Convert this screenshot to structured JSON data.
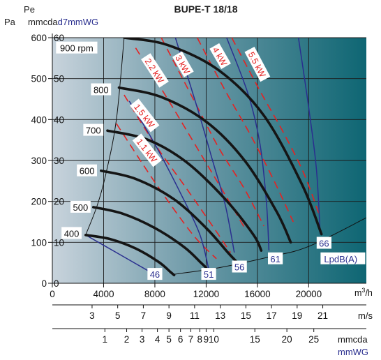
{
  "chart_data": {
    "type": "line",
    "title": "BUPE-T 18/18",
    "y_axes": {
      "pa_label": "Pa",
      "pe_label": "Pe",
      "mmcda_label": "mmcda",
      "mmwg_label": "d7mmWG",
      "pa_ticks": [
        0,
        100,
        200,
        300,
        400,
        500,
        600
      ],
      "mmcda_ticks": [
        0,
        10,
        20,
        30,
        40,
        50,
        60
      ],
      "ylim_pa": [
        0,
        600
      ]
    },
    "x_axis": {
      "unit": "m³/h",
      "ticks": [
        0,
        4000,
        8000,
        12000,
        16000,
        20000
      ],
      "xlim": [
        0,
        24500
      ]
    },
    "ms_scale": {
      "unit": "m/s",
      "ticks": [
        {
          "label": "3",
          "x": 3100
        },
        {
          "label": "5",
          "x": 5100
        },
        {
          "label": "7",
          "x": 7100
        },
        {
          "label": "9",
          "x": 9100
        },
        {
          "label": "11",
          "x": 11100
        },
        {
          "label": "13",
          "x": 13100
        },
        {
          "label": "15",
          "x": 15100
        },
        {
          "label": "17",
          "x": 17100
        },
        {
          "label": "19",
          "x": 19100
        },
        {
          "label": "21",
          "x": 21100
        }
      ]
    },
    "mmcda_scale": {
      "unit_line1": "mmcda",
      "unit_line2": "mmWG",
      "ticks": [
        {
          "label": "1",
          "x": 4100
        },
        {
          "label": "2",
          "x": 5800
        },
        {
          "label": "3",
          "x": 7000
        },
        {
          "label": "4",
          "x": 8200
        },
        {
          "label": "5",
          "x": 9100
        },
        {
          "label": "6",
          "x": 10000
        },
        {
          "label": "7",
          "x": 10800
        },
        {
          "label": "8",
          "x": 11500
        },
        {
          "label": "9",
          "x": 12000
        },
        {
          "label": "10",
          "x": 12600
        },
        {
          "label": "15",
          "x": 15800
        },
        {
          "label": "20",
          "x": 18300
        },
        {
          "label": "25",
          "x": 20400
        }
      ]
    },
    "rpm_curves": [
      {
        "label": "900 rpm",
        "label_pos": [
          1900,
          575
        ],
        "points": [
          [
            5600,
            600
          ],
          [
            9000,
            582
          ],
          [
            13000,
            520
          ],
          [
            16500,
            410
          ],
          [
            19500,
            240
          ],
          [
            21000,
            120
          ]
        ]
      },
      {
        "label": "800",
        "label_pos": [
          3800,
          473
        ],
        "points": [
          [
            5200,
            478
          ],
          [
            8500,
            455
          ],
          [
            12000,
            395
          ],
          [
            15000,
            300
          ],
          [
            17500,
            175
          ],
          [
            18600,
            100
          ]
        ]
      },
      {
        "label": "700",
        "label_pos": [
          3200,
          374
        ],
        "points": [
          [
            4300,
            373
          ],
          [
            7500,
            350
          ],
          [
            10500,
            295
          ],
          [
            13500,
            205
          ],
          [
            15700,
            118
          ],
          [
            16300,
            80
          ]
        ]
      },
      {
        "label": "600",
        "label_pos": [
          2700,
          275
        ],
        "points": [
          [
            3800,
            275
          ],
          [
            6500,
            255
          ],
          [
            9500,
            205
          ],
          [
            12000,
            135
          ],
          [
            13700,
            75
          ],
          [
            14300,
            55
          ]
        ]
      },
      {
        "label": "500",
        "label_pos": [
          2200,
          186
        ],
        "points": [
          [
            3200,
            186
          ],
          [
            5500,
            170
          ],
          [
            8000,
            135
          ],
          [
            10300,
            88
          ],
          [
            11600,
            50
          ],
          [
            12000,
            38
          ]
        ]
      },
      {
        "label": "400",
        "label_pos": [
          1500,
          122
        ],
        "points": [
          [
            2600,
            118
          ],
          [
            4500,
            108
          ],
          [
            6500,
            85
          ],
          [
            8300,
            52
          ],
          [
            9200,
            28
          ],
          [
            9500,
            20
          ]
        ]
      }
    ],
    "power_lines": [
      {
        "label": "1.1 kW",
        "label_pos": [
          7400,
          325
        ],
        "points": [
          [
            5000,
            390
          ],
          [
            7500,
            270
          ],
          [
            9500,
            180
          ],
          [
            11200,
            110
          ],
          [
            12800,
            60
          ]
        ]
      },
      {
        "label": "1.5 kW",
        "label_pos": [
          7200,
          410
        ],
        "points": [
          [
            5600,
            460
          ],
          [
            8000,
            340
          ],
          [
            10500,
            230
          ],
          [
            12500,
            140
          ],
          [
            13900,
            75
          ]
        ]
      },
      {
        "label": "2.2 kW",
        "label_pos": [
          8000,
          520
        ],
        "points": [
          [
            6500,
            575
          ],
          [
            9000,
            450
          ],
          [
            11500,
            320
          ],
          [
            13600,
            210
          ],
          [
            15100,
            130
          ]
        ]
      },
      {
        "label": "3 kW",
        "label_pos": [
          10200,
          535
        ],
        "points": [
          [
            8500,
            600
          ],
          [
            11000,
            450
          ],
          [
            13000,
            330
          ],
          [
            15000,
            230
          ],
          [
            16500,
            140
          ]
        ]
      },
      {
        "label": "4 kW",
        "label_pos": [
          13100,
          555
        ],
        "points": [
          [
            11300,
            600
          ],
          [
            13500,
            470
          ],
          [
            15500,
            360
          ],
          [
            17300,
            250
          ],
          [
            18800,
            150
          ]
        ]
      },
      {
        "label": "5.5 kW",
        "label_pos": [
          16000,
          535
        ],
        "points": [
          [
            14000,
            600
          ],
          [
            16200,
            470
          ],
          [
            18000,
            370
          ],
          [
            19600,
            270
          ],
          [
            20800,
            170
          ]
        ]
      }
    ],
    "noise_lines": [
      {
        "label": "46",
        "label_pos": [
          8000,
          22
        ],
        "points": [
          [
            2600,
            118
          ],
          [
            5000,
            75
          ],
          [
            7500,
            30
          ],
          [
            8200,
            18
          ]
        ]
      },
      {
        "label": "51",
        "label_pos": [
          12200,
          22
        ],
        "points": [
          [
            6000,
            445
          ],
          [
            8000,
            340
          ],
          [
            10000,
            220
          ],
          [
            11500,
            120
          ],
          [
            12200,
            35
          ]
        ]
      },
      {
        "label": "56",
        "label_pos": [
          14600,
          40
        ],
        "points": [
          [
            9600,
            600
          ],
          [
            11200,
            440
          ],
          [
            12500,
            300
          ],
          [
            13500,
            190
          ],
          [
            14200,
            75
          ]
        ]
      },
      {
        "label": "61",
        "label_pos": [
          17400,
          60
        ],
        "points": [
          [
            13600,
            600
          ],
          [
            15300,
            460
          ],
          [
            16200,
            340
          ],
          [
            16700,
            200
          ],
          [
            16900,
            80
          ]
        ]
      },
      {
        "label": "66",
        "label_pos": [
          21200,
          98
        ],
        "points": [
          [
            19200,
            600
          ],
          [
            20000,
            430
          ],
          [
            20600,
            280
          ],
          [
            20900,
            120
          ]
        ]
      }
    ],
    "noise_unit": "LpdB(A)",
    "system_curve": [
      [
        2600,
        118
      ],
      [
        3500,
        190
      ],
      [
        4200,
        270
      ],
      [
        5000,
        400
      ],
      [
        5600,
        600
      ]
    ],
    "minimum_curve": [
      [
        9500,
        22
      ],
      [
        13000,
        38
      ],
      [
        17000,
        65
      ],
      [
        20000,
        90
      ],
      [
        24500,
        160
      ]
    ],
    "colors": {
      "rpm": "#151515",
      "power": "#e52222",
      "noise": "#2a2f8f",
      "bg_left": "#c8d3dc",
      "bg_right": "#0e6673"
    }
  }
}
